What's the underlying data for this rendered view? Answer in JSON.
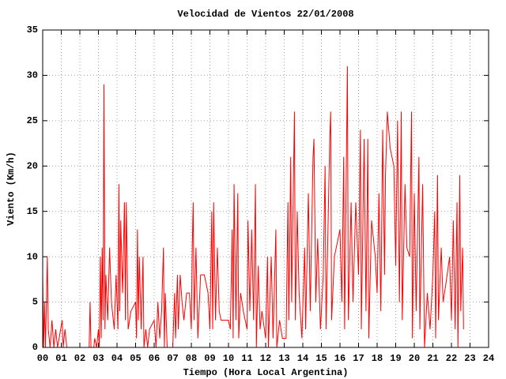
{
  "chart_data": {
    "type": "line",
    "title": "Velocidad de Vientos 22/01/2008",
    "x_label": "Tiempo (Hora Local Argentina)",
    "y_label": "Viento (Km/h)",
    "xlim": [
      0,
      24
    ],
    "ylim": [
      0,
      35
    ],
    "xticks": [
      {
        "value": 0,
        "label": "00"
      },
      {
        "value": 1,
        "label": "01"
      },
      {
        "value": 2,
        "label": "02"
      },
      {
        "value": 3,
        "label": "03"
      },
      {
        "value": 4,
        "label": "04"
      },
      {
        "value": 5,
        "label": "05"
      },
      {
        "value": 6,
        "label": "06"
      },
      {
        "value": 7,
        "label": "07"
      },
      {
        "value": 8,
        "label": "08"
      },
      {
        "value": 9,
        "label": "09"
      },
      {
        "value": 10,
        "label": "10"
      },
      {
        "value": 11,
        "label": "11"
      },
      {
        "value": 12,
        "label": "12"
      },
      {
        "value": 13,
        "label": "13"
      },
      {
        "value": 14,
        "label": "14"
      },
      {
        "value": 15,
        "label": "15"
      },
      {
        "value": 16,
        "label": "16"
      },
      {
        "value": 17,
        "label": "17"
      },
      {
        "value": 18,
        "label": "18"
      },
      {
        "value": 19,
        "label": "19"
      },
      {
        "value": 20,
        "label": "20"
      },
      {
        "value": 21,
        "label": "21"
      },
      {
        "value": 22,
        "label": "22"
      },
      {
        "value": 23,
        "label": "23"
      },
      {
        "value": 24,
        "label": "24"
      }
    ],
    "yticks": [
      0,
      5,
      10,
      15,
      20,
      25,
      30,
      35
    ],
    "grid": true,
    "color": "#ff0000",
    "x": [
      0.0,
      0.05,
      0.1,
      0.15,
      0.25,
      0.3,
      0.4,
      0.5,
      0.6,
      0.7,
      0.8,
      1.05,
      1.1,
      1.2,
      1.3,
      2.5,
      2.55,
      2.6,
      2.75,
      2.8,
      2.9,
      3.0,
      3.05,
      3.1,
      3.15,
      3.2,
      3.25,
      3.3,
      3.35,
      3.4,
      3.5,
      3.6,
      3.7,
      3.85,
      3.95,
      4.05,
      4.1,
      4.15,
      4.2,
      4.3,
      4.4,
      4.45,
      4.5,
      4.6,
      4.75,
      5.0,
      5.05,
      5.1,
      5.15,
      5.2,
      5.3,
      5.4,
      5.45,
      5.55,
      5.65,
      5.75,
      6.0,
      6.1,
      6.2,
      6.3,
      6.4,
      6.5,
      6.55,
      6.6,
      6.7,
      7.0,
      7.1,
      7.15,
      7.25,
      7.3,
      7.4,
      7.5,
      7.6,
      7.75,
      7.9,
      8.0,
      8.05,
      8.1,
      8.15,
      8.25,
      8.35,
      8.5,
      8.7,
      8.9,
      9.0,
      9.1,
      9.15,
      9.2,
      9.3,
      9.4,
      9.5,
      9.6,
      10.0,
      10.1,
      10.2,
      10.25,
      10.3,
      10.4,
      10.5,
      10.55,
      10.65,
      10.8,
      11.0,
      11.05,
      11.15,
      11.25,
      11.35,
      11.45,
      11.5,
      11.6,
      11.7,
      11.8,
      12.0,
      12.1,
      12.15,
      12.3,
      12.4,
      12.55,
      12.6,
      12.75,
      12.9,
      13.1,
      13.2,
      13.25,
      13.35,
      13.4,
      13.55,
      13.6,
      13.7,
      13.8,
      13.95,
      14.1,
      14.15,
      14.3,
      14.4,
      14.55,
      14.6,
      14.7,
      14.8,
      14.95,
      15.1,
      15.2,
      15.25,
      15.45,
      15.5,
      15.55,
      15.7,
      16.0,
      16.1,
      16.2,
      16.25,
      16.4,
      16.45,
      16.6,
      16.7,
      16.85,
      17.0,
      17.1,
      17.15,
      17.3,
      17.4,
      17.5,
      17.55,
      17.7,
      17.9,
      18.0,
      18.1,
      18.2,
      18.3,
      18.4,
      18.45,
      18.55,
      18.7,
      18.9,
      19.0,
      19.1,
      19.2,
      19.3,
      19.35,
      19.5,
      19.6,
      19.75,
      19.85,
      19.9,
      20.0,
      20.1,
      20.25,
      20.3,
      20.45,
      20.55,
      20.7,
      20.85,
      21.0,
      21.1,
      21.15,
      21.25,
      21.3,
      21.45,
      21.55,
      21.7,
      21.9,
      22.0,
      22.1,
      22.2,
      22.3,
      22.35,
      22.45,
      22.5,
      22.6,
      22.65
    ],
    "values": [
      8,
      0,
      5,
      0,
      10,
      2,
      0,
      3,
      0,
      2,
      0,
      3,
      0,
      2,
      0,
      0,
      5,
      0,
      0,
      1,
      0,
      2,
      0,
      10,
      1,
      11,
      3,
      29,
      2,
      8,
      3,
      11,
      5,
      2,
      8,
      2,
      18,
      4,
      14,
      6,
      16,
      3,
      16,
      2,
      4,
      5,
      1,
      13,
      3,
      10,
      2,
      10,
      0,
      2,
      0,
      2,
      3,
      0,
      5,
      1,
      4,
      11,
      0,
      6,
      0,
      0,
      6,
      1,
      8,
      2,
      8,
      5,
      3,
      6,
      6,
      2,
      11,
      16,
      3,
      11,
      1,
      8,
      8,
      6,
      2,
      15,
      2,
      16,
      3,
      11,
      4,
      3,
      3,
      2,
      13,
      1,
      18,
      3,
      17,
      1,
      6,
      4,
      2,
      14,
      4,
      13,
      3,
      18,
      0,
      9,
      2,
      4,
      1,
      10,
      0,
      10,
      1,
      13,
      0,
      3,
      1,
      1,
      16,
      3,
      21,
      5,
      26,
      3,
      15,
      6,
      1,
      11,
      2,
      17,
      4,
      21,
      23,
      5,
      12,
      2,
      8,
      20,
      2,
      23,
      26,
      3,
      10,
      13,
      5,
      21,
      2,
      31,
      3,
      16,
      5,
      16,
      8,
      24,
      2,
      23,
      4,
      23,
      1,
      14,
      10,
      6,
      17,
      4,
      24,
      8,
      19,
      26,
      22,
      20,
      9,
      25,
      5,
      26,
      3,
      18,
      11,
      10,
      26,
      1,
      17,
      4,
      21,
      2,
      18,
      0,
      6,
      2,
      8,
      15,
      1,
      19,
      3,
      11,
      5,
      7,
      10,
      3,
      14,
      2,
      16,
      0,
      19,
      4,
      11,
      2
    ]
  }
}
